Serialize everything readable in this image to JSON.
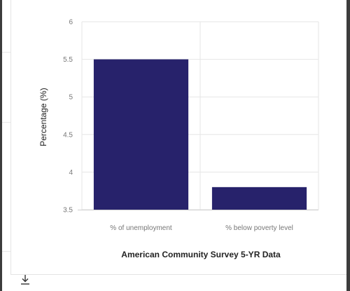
{
  "chart_data": {
    "type": "bar",
    "categories": [
      "% of unemployment",
      "% below poverty level"
    ],
    "values": [
      5.5,
      3.8
    ],
    "title": "",
    "xlabel": "American Community Survey 5-YR Data",
    "ylabel": "Percentage (%)",
    "ylim": [
      3.5,
      6
    ],
    "yticks": [
      3.5,
      4,
      4.5,
      5,
      5.5,
      6
    ],
    "grid": true,
    "bar_color": "#27226b"
  },
  "controls": {
    "download_icon": "download-icon"
  }
}
